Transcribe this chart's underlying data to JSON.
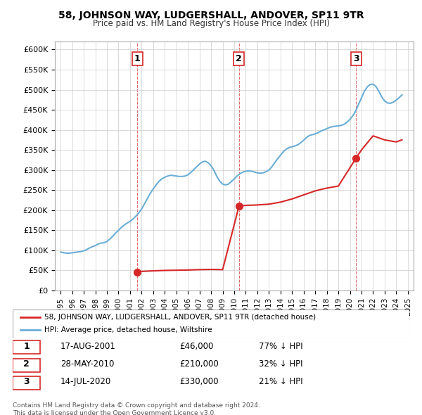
{
  "title": "58, JOHNSON WAY, LUDGERSHALL, ANDOVER, SP11 9TR",
  "subtitle": "Price paid vs. HM Land Registry's House Price Index (HPI)",
  "ylabel": "",
  "xlabel": "",
  "ylim": [
    0,
    620000
  ],
  "yticks": [
    0,
    50000,
    100000,
    150000,
    200000,
    250000,
    300000,
    350000,
    400000,
    450000,
    500000,
    550000,
    600000
  ],
  "ytick_labels": [
    "£0",
    "£50K",
    "£100K",
    "£150K",
    "£200K",
    "£250K",
    "£300K",
    "£350K",
    "£400K",
    "£450K",
    "£500K",
    "£550K",
    "£600K"
  ],
  "xlim_start": 1994.5,
  "xlim_end": 2025.5,
  "xtick_years": [
    1995,
    1996,
    1997,
    1998,
    1999,
    2000,
    2001,
    2002,
    2003,
    2004,
    2005,
    2006,
    2007,
    2008,
    2009,
    2010,
    2011,
    2012,
    2013,
    2014,
    2015,
    2016,
    2017,
    2018,
    2019,
    2020,
    2021,
    2022,
    2023,
    2024,
    2025
  ],
  "hpi_color": "#6baed6",
  "price_color": "#d62728",
  "sale_dates_decimal": [
    2001.635,
    2010.41,
    2020.535
  ],
  "sale_prices": [
    46000,
    210000,
    330000
  ],
  "sale_labels": [
    "1",
    "2",
    "3"
  ],
  "sale_info": [
    {
      "label": "1",
      "date": "17-AUG-2001",
      "price": "£46,000",
      "hpi": "77% ↓ HPI"
    },
    {
      "label": "2",
      "date": "28-MAY-2010",
      "price": "£210,000",
      "hpi": "32% ↓ HPI"
    },
    {
      "label": "3",
      "date": "14-JUL-2020",
      "price": "£330,000",
      "hpi": "21% ↓ HPI"
    }
  ],
  "legend_line1": "58, JOHNSON WAY, LUDGERSHALL, ANDOVER, SP11 9TR (detached house)",
  "legend_line2": "HPI: Average price, detached house, Wiltshire",
  "footnote": "Contains HM Land Registry data © Crown copyright and database right 2024.\nThis data is licensed under the Open Government Licence v3.0.",
  "hpi_data": {
    "years": [
      1995.0,
      1995.25,
      1995.5,
      1995.75,
      1996.0,
      1996.25,
      1996.5,
      1996.75,
      1997.0,
      1997.25,
      1997.5,
      1997.75,
      1998.0,
      1998.25,
      1998.5,
      1998.75,
      1999.0,
      1999.25,
      1999.5,
      1999.75,
      2000.0,
      2000.25,
      2000.5,
      2000.75,
      2001.0,
      2001.25,
      2001.5,
      2001.75,
      2002.0,
      2002.25,
      2002.5,
      2002.75,
      2003.0,
      2003.25,
      2003.5,
      2003.75,
      2004.0,
      2004.25,
      2004.5,
      2004.75,
      2005.0,
      2005.25,
      2005.5,
      2005.75,
      2006.0,
      2006.25,
      2006.5,
      2006.75,
      2007.0,
      2007.25,
      2007.5,
      2007.75,
      2008.0,
      2008.25,
      2008.5,
      2008.75,
      2009.0,
      2009.25,
      2009.5,
      2009.75,
      2010.0,
      2010.25,
      2010.5,
      2010.75,
      2011.0,
      2011.25,
      2011.5,
      2011.75,
      2012.0,
      2012.25,
      2012.5,
      2012.75,
      2013.0,
      2013.25,
      2013.5,
      2013.75,
      2014.0,
      2014.25,
      2014.5,
      2014.75,
      2015.0,
      2015.25,
      2015.5,
      2015.75,
      2016.0,
      2016.25,
      2016.5,
      2016.75,
      2017.0,
      2017.25,
      2017.5,
      2017.75,
      2018.0,
      2018.25,
      2018.5,
      2018.75,
      2019.0,
      2019.25,
      2019.5,
      2019.75,
      2020.0,
      2020.25,
      2020.5,
      2020.75,
      2021.0,
      2021.25,
      2021.5,
      2021.75,
      2022.0,
      2022.25,
      2022.5,
      2022.75,
      2023.0,
      2023.25,
      2023.5,
      2023.75,
      2024.0,
      2024.25,
      2024.5
    ],
    "values": [
      96000,
      94000,
      93000,
      93000,
      94000,
      95000,
      96000,
      97000,
      99000,
      102000,
      106000,
      109000,
      112000,
      116000,
      118000,
      119000,
      122000,
      128000,
      135000,
      143000,
      150000,
      157000,
      163000,
      168000,
      172000,
      178000,
      185000,
      193000,
      203000,
      216000,
      229000,
      242000,
      253000,
      263000,
      272000,
      278000,
      282000,
      285000,
      287000,
      286000,
      285000,
      284000,
      284000,
      285000,
      288000,
      294000,
      301000,
      308000,
      315000,
      320000,
      322000,
      318000,
      311000,
      299000,
      284000,
      272000,
      265000,
      263000,
      265000,
      271000,
      278000,
      285000,
      291000,
      295000,
      297000,
      298000,
      297000,
      295000,
      293000,
      292000,
      293000,
      296000,
      300000,
      308000,
      318000,
      328000,
      337000,
      346000,
      352000,
      356000,
      358000,
      360000,
      363000,
      368000,
      374000,
      381000,
      386000,
      388000,
      390000,
      393000,
      397000,
      400000,
      403000,
      406000,
      408000,
      409000,
      410000,
      411000,
      414000,
      419000,
      426000,
      435000,
      447000,
      464000,
      480000,
      496000,
      507000,
      513000,
      514000,
      508000,
      496000,
      482000,
      472000,
      467000,
      466000,
      469000,
      474000,
      480000,
      487000
    ]
  },
  "price_line_data": {
    "years": [
      2001.635,
      2001.635,
      2002.0,
      2003.0,
      2004.0,
      2005.0,
      2006.0,
      2007.0,
      2008.0,
      2009.0,
      2010.41,
      2010.41,
      2011.0,
      2012.0,
      2013.0,
      2014.0,
      2015.0,
      2016.0,
      2017.0,
      2018.0,
      2019.0,
      2020.535,
      2020.535,
      2021.0,
      2022.0,
      2023.0,
      2024.0,
      2024.5
    ],
    "values": [
      46000,
      46000,
      47500,
      49000,
      50000,
      50500,
      51000,
      52000,
      52500,
      52000,
      210000,
      210000,
      212000,
      213000,
      215000,
      220000,
      228000,
      238000,
      248000,
      255000,
      260000,
      330000,
      330000,
      350000,
      385000,
      375000,
      370000,
      375000
    ]
  }
}
